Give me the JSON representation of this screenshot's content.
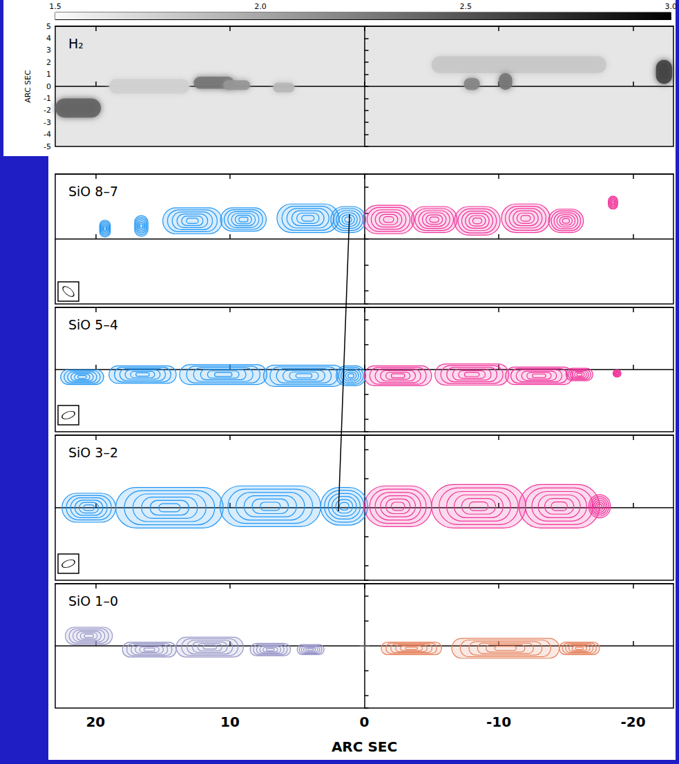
{
  "chart_data": [
    {
      "type": "image",
      "title": "H₂",
      "xlim": [
        23,
        -23
      ],
      "xticks": [
        20,
        10,
        0,
        -10,
        -20
      ],
      "ylim": [
        -5,
        5
      ],
      "yticks": [
        -5,
        -4,
        -3,
        -2,
        -1,
        0,
        1,
        2,
        3,
        4,
        5
      ],
      "ylabel": "ARC SEC",
      "tick_labels": "y",
      "background_level": 1.62,
      "colorbar": {
        "range": [
          1.5,
          3.0
        ],
        "ticks": [
          1.5,
          {
            "value": 2,
            "label": "2.0"
          },
          2.5,
          {
            "value": 3,
            "label": "3.0"
          }
        ]
      },
      "series": [
        {
          "x": [
            21.3,
            16.0,
            11.2,
            9.5,
            6.0,
            -11.5,
            -8.0,
            -10.5,
            -22.3
          ],
          "y": [
            -1.8,
            0.0,
            0.3,
            0.1,
            -0.1,
            1.8,
            0.2,
            0.4,
            1.2
          ],
          "length": [
            3.4,
            6.0,
            3.0,
            2.0,
            1.6,
            13.0,
            1.2,
            1.0,
            1.2
          ],
          "width": [
            1.6,
            1.2,
            1.0,
            0.8,
            0.8,
            1.4,
            1.0,
            1.4,
            2.0
          ],
          "level": [
            2.4,
            1.75,
            2.3,
            2.1,
            1.9,
            1.8,
            2.2,
            2.3,
            2.6
          ]
        }
      ]
    },
    {
      "type": "contour",
      "title": "SiO 8–7",
      "xlim": [
        23,
        -23
      ],
      "xticks": [
        20,
        10,
        0,
        -10,
        -20
      ],
      "ylim": [
        -5,
        5
      ],
      "tick_labels": false,
      "series": [
        {
          "color": "#2196f3",
          "x": [
            19.3,
            16.6,
            12.8,
            9.0,
            4.2,
            1.2
          ],
          "y": [
            0.8,
            1.0,
            1.4,
            1.5,
            1.6,
            1.5
          ],
          "length": [
            0.8,
            1.0,
            4.4,
            3.4,
            4.6,
            2.6
          ],
          "width": [
            1.3,
            1.6,
            2.0,
            1.8,
            2.2,
            2.0
          ]
        },
        {
          "color": "#f0339a",
          "x": [
            -1.8,
            -5.2,
            -8.4,
            -12.0,
            -15.0,
            -18.5
          ],
          "y": [
            1.5,
            1.5,
            1.4,
            1.6,
            1.4,
            2.8
          ],
          "length": [
            3.8,
            3.4,
            3.4,
            3.6,
            2.6,
            0.7
          ],
          "width": [
            2.2,
            2.0,
            2.2,
            2.2,
            1.8,
            1.0
          ]
        }
      ]
    },
    {
      "type": "contour",
      "title": "SiO 5–4",
      "xlim": [
        23,
        -23
      ],
      "xticks": [
        20,
        10,
        0,
        -10,
        -20
      ],
      "ylim": [
        -5,
        5
      ],
      "tick_labels": false,
      "series": [
        {
          "color": "#2196f3",
          "x": [
            21.0,
            16.5,
            10.5,
            4.5,
            1.0
          ],
          "y": [
            -0.6,
            -0.4,
            -0.4,
            -0.5,
            -0.5
          ],
          "length": [
            3.2,
            5.0,
            6.5,
            6.0,
            2.2
          ],
          "width": [
            1.2,
            1.4,
            1.6,
            1.7,
            1.6
          ]
        },
        {
          "color": "#f0339a",
          "x": [
            -2.5,
            -8.0,
            -13.0,
            -16.0,
            -18.8
          ],
          "y": [
            -0.5,
            -0.4,
            -0.5,
            -0.4,
            -0.3
          ],
          "length": [
            5.0,
            5.5,
            5.0,
            2.0,
            0.6
          ],
          "width": [
            1.6,
            1.7,
            1.4,
            1.0,
            0.6
          ]
        }
      ]
    },
    {
      "type": "contour",
      "title": "SiO 3–2",
      "xlim": [
        23,
        -23
      ],
      "xticks": [
        20,
        10,
        0,
        -10,
        -20
      ],
      "ylim": [
        -5,
        5
      ],
      "tick_labels": false,
      "series": [
        {
          "color": "#2196f3",
          "x": [
            20.5,
            14.5,
            7.0,
            1.5
          ],
          "y": [
            0.0,
            0.0,
            0.1,
            0.1
          ],
          "length": [
            4.0,
            8.0,
            7.5,
            3.5
          ],
          "width": [
            2.0,
            2.8,
            2.8,
            2.6
          ]
        },
        {
          "color": "#f0339a",
          "x": [
            -2.5,
            -8.5,
            -14.5,
            -17.5
          ],
          "y": [
            0.1,
            0.1,
            0.1,
            0.1
          ],
          "length": [
            5.0,
            7.0,
            6.0,
            1.6
          ],
          "width": [
            2.8,
            3.0,
            3.0,
            1.6
          ]
        }
      ]
    },
    {
      "type": "contour",
      "title": "SiO 1–0",
      "xlim": [
        23,
        -23
      ],
      "xticks": [
        20,
        10,
        0,
        -10,
        -20
      ],
      "xlabel": "ARC SEC",
      "ylim": [
        -5,
        5
      ],
      "tick_labels": "x",
      "marker": "cross",
      "marker_position": [
        0,
        0
      ],
      "series": [
        {
          "color": "#9896c8",
          "x": [
            20.5,
            16.0,
            11.5,
            7.0,
            4.0
          ],
          "y": [
            0.8,
            -0.3,
            -0.1,
            -0.3,
            -0.3
          ],
          "length": [
            3.5,
            4.0,
            5.0,
            3.0,
            2.0
          ],
          "width": [
            1.4,
            1.2,
            1.6,
            1.0,
            0.8
          ]
        },
        {
          "color": "#e6825e",
          "x": [
            -3.5,
            -10.5,
            -16.0
          ],
          "y": [
            -0.2,
            -0.2,
            -0.2
          ],
          "length": [
            4.5,
            8.0,
            3.0
          ],
          "width": [
            1.0,
            1.6,
            1.0
          ]
        }
      ]
    }
  ]
}
